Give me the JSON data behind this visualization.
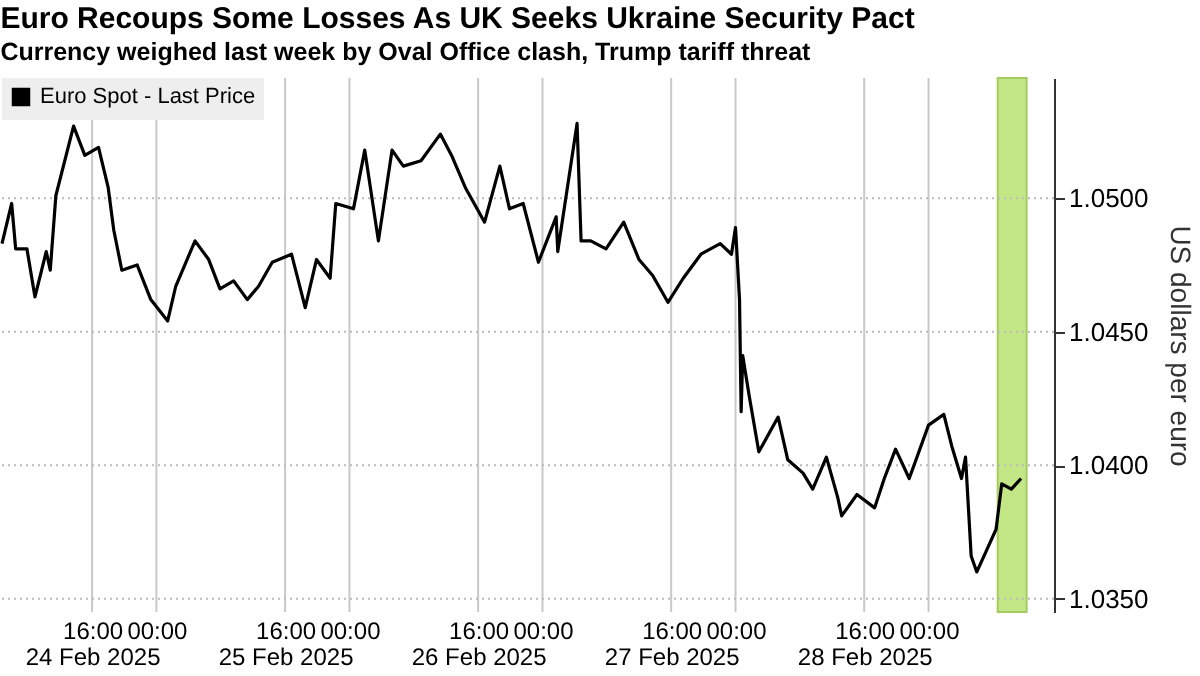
{
  "chart_data": {
    "type": "line",
    "title": "Euro Recoups Some Losses As UK Seeks Ukraine Security Pact",
    "subtitle": "Currency weighed last week by Oval Office clash, Trump tariff threat",
    "ylabel": "US dollars per euro",
    "x": [
      "2025-02-24T04:48",
      "2025-02-24T06:00",
      "2025-02-24T06:30",
      "2025-02-24T07:54",
      "2025-02-24T08:54",
      "2025-02-24T10:18",
      "2025-02-24T10:48",
      "2025-02-24T11:30",
      "2025-02-24T13:42",
      "2025-02-24T15:06",
      "2025-02-24T16:48",
      "2025-02-24T18:00",
      "2025-02-24T18:42",
      "2025-02-24T19:42",
      "2025-02-24T21:36",
      "2025-02-24T23:18",
      "2025-02-25T01:24",
      "2025-02-25T02:24",
      "2025-02-25T04:48",
      "2025-02-25T06:30",
      "2025-02-25T07:54",
      "2025-02-25T09:36",
      "2025-02-25T11:18",
      "2025-02-25T12:42",
      "2025-02-25T14:24",
      "2025-02-25T16:48",
      "2025-02-25T18:30",
      "2025-02-25T19:54",
      "2025-02-25T21:36",
      "2025-02-25T22:18",
      "2025-02-26T00:30",
      "2025-02-26T01:54",
      "2025-02-26T03:36",
      "2025-02-26T05:18",
      "2025-02-26T06:42",
      "2025-02-26T08:54",
      "2025-02-26T11:18",
      "2025-02-26T12:42",
      "2025-02-26T14:24",
      "2025-02-26T16:48",
      "2025-02-26T18:42",
      "2025-02-26T19:54",
      "2025-02-26T21:36",
      "2025-02-26T23:30",
      "2025-02-27T01:42",
      "2025-02-27T01:54",
      "2025-02-27T04:18",
      "2025-02-27T04:48",
      "2025-02-27T06:00",
      "2025-02-27T07:54",
      "2025-02-27T10:06",
      "2025-02-27T12:00",
      "2025-02-27T13:42",
      "2025-02-27T15:36",
      "2025-02-27T17:30",
      "2025-02-27T19:42",
      "2025-02-27T22:06",
      "2025-02-27T23:30",
      "2025-02-28T00:00",
      "2025-02-28T00:30",
      "2025-02-28T00:42",
      "2025-02-28T00:54",
      "2025-02-28T01:42",
      "2025-02-28T02:54",
      "2025-02-28T05:18",
      "2025-02-28T06:30",
      "2025-02-28T08:24",
      "2025-02-28T09:36",
      "2025-02-28T11:18",
      "2025-02-28T12:42",
      "2025-02-28T13:12",
      "2025-02-28T15:06",
      "2025-02-28T17:18",
      "2025-02-28T18:30",
      "2025-02-28T19:54",
      "2025-02-28T21:36",
      "2025-03-01T00:00",
      "2025-03-01T01:54",
      "2025-03-01T02:54",
      "2025-03-01T04:06",
      "2025-03-01T04:36",
      "2025-03-01T05:18",
      "2025-03-01T06:00",
      "2025-03-01T07:12",
      "2025-03-01T08:24",
      "2025-03-01T09:06",
      "2025-03-01T10:18",
      "2025-03-01T11:30"
    ],
    "series": [
      {
        "name": "Euro Spot - Last Price",
        "color": "#000000",
        "values": [
          1.0483,
          1.0498,
          1.0481,
          1.0481,
          1.0463,
          1.048,
          1.0473,
          1.0501,
          1.0527,
          1.0516,
          1.0519,
          1.0504,
          1.0488,
          1.0473,
          1.0475,
          1.0462,
          1.0454,
          1.0467,
          1.0484,
          1.0477,
          1.0466,
          1.0469,
          1.0462,
          1.0467,
          1.0476,
          1.0479,
          1.0459,
          1.0477,
          1.047,
          1.0498,
          1.0496,
          1.0518,
          1.0484,
          1.0518,
          1.0512,
          1.0514,
          1.0524,
          1.0516,
          1.0504,
          1.0491,
          1.0512,
          1.0496,
          1.0498,
          1.0476,
          1.0493,
          1.048,
          1.0528,
          1.0484,
          1.0484,
          1.0481,
          1.0491,
          1.0477,
          1.0471,
          1.0461,
          1.047,
          1.0479,
          1.0483,
          1.0479,
          1.0489,
          1.0462,
          1.042,
          1.0441,
          1.0426,
          1.0405,
          1.0418,
          1.0402,
          1.0397,
          1.0391,
          1.0403,
          1.0388,
          1.0381,
          1.0389,
          1.0384,
          1.0395,
          1.0406,
          1.0395,
          1.0415,
          1.0419,
          1.0407,
          1.0395,
          1.0403,
          1.0366,
          1.036,
          1.0368,
          1.0376,
          1.0393,
          1.0391,
          1.0395
        ]
      }
    ],
    "xlim": [
      "2025-02-24T04:48",
      "2025-03-01T15:36"
    ],
    "xticks": [
      {
        "value": "2025-02-24T16:00",
        "label": "16:00\n24 Feb 2025"
      },
      {
        "value": "2025-02-25T00:00",
        "label": "00:00"
      },
      {
        "value": "2025-02-25T16:00",
        "label": "16:00\n25 Feb 2025"
      },
      {
        "value": "2025-02-26T00:00",
        "label": "00:00"
      },
      {
        "value": "2025-02-26T16:00",
        "label": "16:00\n26 Feb 2025"
      },
      {
        "value": "2025-02-27T00:00",
        "label": "00:00"
      },
      {
        "value": "2025-02-27T16:00",
        "label": "16:00\n27 Feb 2025"
      },
      {
        "value": "2025-02-28T00:00",
        "label": "00:00"
      },
      {
        "value": "2025-02-28T16:00",
        "label": "16:00\n28 Feb 2025"
      },
      {
        "value": "2025-03-01T00:00",
        "label": "00:00"
      }
    ],
    "ylim": [
      1.0345,
      1.0545
    ],
    "yticks": [
      {
        "value": 1.035,
        "label": "1.0350"
      },
      {
        "value": 1.04,
        "label": "1.0400"
      },
      {
        "value": 1.045,
        "label": "1.0450"
      },
      {
        "value": 1.05,
        "label": "1.0500"
      }
    ],
    "bands": [
      {
        "axis": "x",
        "from": "2025-03-01T08:36",
        "to": "2025-03-01T12:12",
        "color": "#b5e06a"
      }
    ],
    "grid": true,
    "legend": "top left",
    "line_style": "solid"
  }
}
